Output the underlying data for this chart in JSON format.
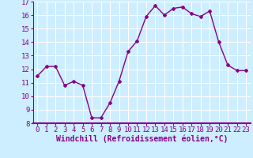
{
  "x": [
    0,
    1,
    2,
    3,
    4,
    5,
    6,
    7,
    8,
    9,
    10,
    11,
    12,
    13,
    14,
    15,
    16,
    17,
    18,
    19,
    20,
    21,
    22,
    23
  ],
  "y": [
    11.5,
    12.2,
    12.2,
    10.8,
    11.1,
    10.8,
    8.4,
    8.4,
    9.5,
    11.1,
    13.3,
    14.1,
    15.9,
    16.7,
    16.0,
    16.5,
    16.6,
    16.1,
    15.9,
    16.3,
    14.0,
    12.3,
    11.9,
    11.9
  ],
  "line_color": "#880088",
  "marker": "D",
  "marker_size": 2.0,
  "line_width": 1.0,
  "xlabel": "Windchill (Refroidissement éolien,°C)",
  "ylabel": "",
  "xlim": [
    -0.5,
    23.5
  ],
  "ylim": [
    8,
    17
  ],
  "yticks": [
    8,
    9,
    10,
    11,
    12,
    13,
    14,
    15,
    16,
    17
  ],
  "xticks": [
    0,
    1,
    2,
    3,
    4,
    5,
    6,
    7,
    8,
    9,
    10,
    11,
    12,
    13,
    14,
    15,
    16,
    17,
    18,
    19,
    20,
    21,
    22,
    23
  ],
  "bg_color": "#cceeff",
  "grid_color": "#ffffff",
  "tick_label_fontsize": 6.5,
  "xlabel_fontsize": 7.0,
  "font_family": "monospace"
}
